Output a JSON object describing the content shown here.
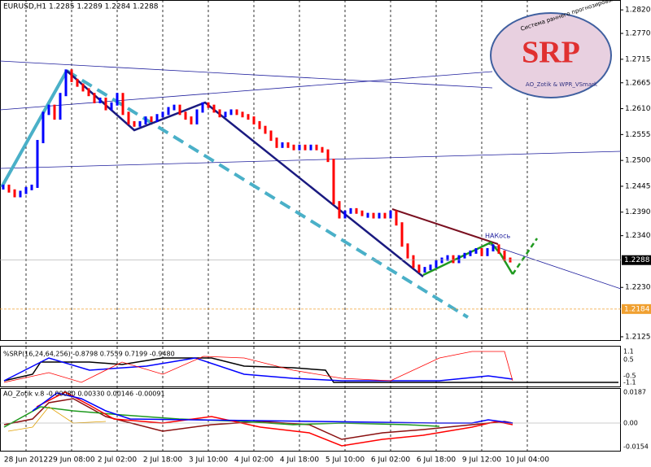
{
  "chart_data": {
    "type": "bar",
    "title": "EURUSD,H1  1.2285 1.2289 1.2284 1.2288",
    "up_color": "#0000ff",
    "down_color": "#ff0000",
    "values": [
      1.2445,
      1.2435,
      1.2425,
      1.2432,
      1.244,
      1.2445,
      1.254,
      1.26,
      1.2615,
      1.259,
      1.264,
      1.269,
      1.267,
      1.266,
      1.265,
      1.264,
      1.2625,
      1.263,
      1.261,
      1.262,
      1.264,
      1.26,
      1.258,
      1.2575,
      1.258,
      1.259,
      1.2585,
      1.2595,
      1.26,
      1.261,
      1.2615,
      1.26,
      1.259,
      1.258,
      1.2605,
      1.262,
      1.2615,
      1.2605,
      1.2595,
      1.26,
      1.2605,
      1.26,
      1.2595,
      1.259,
      1.258,
      1.257,
      1.256,
      1.2545,
      1.253,
      1.2535,
      1.253,
      1.2525,
      1.253,
      1.2525,
      1.253,
      1.2525,
      1.252,
      1.25,
      1.241,
      1.238,
      1.239,
      1.2395,
      1.239,
      1.2385,
      1.2385,
      1.238,
      1.2385,
      1.238,
      1.239,
      1.2365,
      1.232,
      1.2295,
      1.2275,
      1.2265,
      1.227,
      1.2275,
      1.2285,
      1.229,
      1.2295,
      1.2285,
      1.2295,
      1.23,
      1.2305,
      1.231,
      1.23,
      1.231,
      1.2318,
      1.2305,
      1.229,
      1.2288
    ],
    "xlim": [
      -0.571,
      108.43
    ],
    "xticks": [
      {
        "value": 4,
        "label": "28 Jun 2012"
      },
      {
        "value": 12,
        "label": "29 Jun 08:00"
      },
      {
        "value": 20,
        "label": "2 Jul 02:00"
      },
      {
        "value": 28,
        "label": "2 Jul 18:00"
      },
      {
        "value": 36,
        "label": "3 Jul 10:00"
      },
      {
        "value": 44,
        "label": "4 Jul 02:00"
      },
      {
        "value": 52,
        "label": "4 Jul 18:00"
      },
      {
        "value": 60,
        "label": "5 Jul 10:00"
      },
      {
        "value": 68,
        "label": "6 Jul 02:00"
      },
      {
        "value": 76,
        "label": "6 Jul 18:00"
      },
      {
        "value": 84,
        "label": "9 Jul 12:00"
      },
      {
        "value": 92,
        "label": "10 Jul 04:00"
      }
    ],
    "ylim": [
      1.2118,
      1.2841
    ],
    "yticks": [
      {
        "value": 1.282,
        "label": "1.2820"
      },
      {
        "value": 1.277,
        "label": "1.2770"
      },
      1.2715,
      1.2665,
      {
        "value": 1.261,
        "label": "1.2610"
      },
      1.2555,
      {
        "value": 1.25,
        "label": "1.2500"
      },
      1.2445,
      {
        "value": 1.239,
        "label": "1.2390"
      },
      {
        "value": 1.234,
        "label": "1.2340"
      },
      {
        "value": 1.223,
        "label": "1.2230"
      },
      1.2125
    ],
    "bid": 1.2288,
    "level": 1.2184,
    "annotation": "НАКось",
    "logo": {
      "title": "SRP",
      "top": "Система раннего прогнозирования",
      "bottom": "AO_Zotik & WPR_VSmark"
    },
    "indicators": [
      {
        "label": "%SRP(16,24,64,256) -0.8798 0.7559 0.7199 -0.9480",
        "scale": [
          "1.1",
          "0.5",
          "-0.5",
          "-1.1"
        ]
      },
      {
        "label": "AO_Zotik v.8 -0.00080 0.00330 0.00146 -0.00091",
        "scale": [
          "0.0187",
          "0.00",
          "-0.0154"
        ]
      }
    ]
  }
}
